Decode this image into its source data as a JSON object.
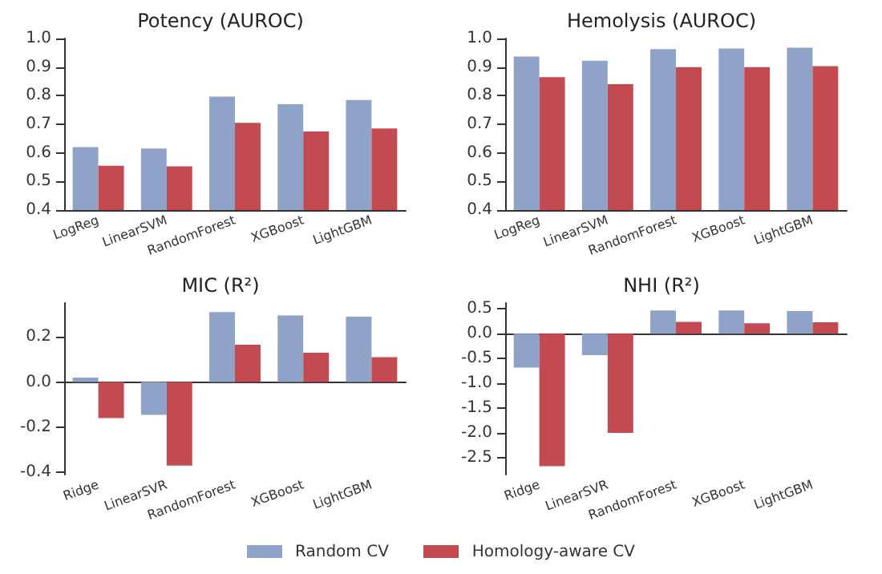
{
  "chart_data": [
    {
      "type": "bar",
      "title": "Potency (AUROC)",
      "categories": [
        "LogReg",
        "LinearSVM",
        "RandomForest",
        "XGBoost",
        "LightGBM"
      ],
      "series": [
        {
          "name": "Random CV",
          "color": "#8fa3c8",
          "values": [
            0.62,
            0.615,
            0.797,
            0.77,
            0.785
          ]
        },
        {
          "name": "Homology-aware CV",
          "color": "#c44a52",
          "values": [
            0.555,
            0.553,
            0.705,
            0.675,
            0.685
          ]
        }
      ],
      "ylim": [
        0.4,
        1.0
      ],
      "yticks": [
        0.4,
        0.5,
        0.6,
        0.7,
        0.8,
        0.9,
        {
          "value": 1,
          "label": "1.0"
        }
      ],
      "legend": "bottom"
    },
    {
      "type": "bar",
      "title": "Hemolysis (AUROC)",
      "categories": [
        "LogReg",
        "LinearSVM",
        "RandomForest",
        "XGBoost",
        "LightGBM"
      ],
      "series": [
        {
          "color": "#8fa3c8",
          "values": [
            0.937,
            0.922,
            0.963,
            0.965,
            0.968
          ]
        },
        {
          "color": "#c44a52",
          "values": [
            0.865,
            0.84,
            0.9,
            0.9,
            0.903
          ]
        }
      ],
      "ylim": [
        0.4,
        1.0
      ],
      "yticks": [
        0.4,
        0.5,
        0.6,
        0.7,
        0.8,
        0.9,
        {
          "value": 1,
          "label": "1.0"
        }
      ]
    },
    {
      "type": "bar",
      "title": "MIC (R²)",
      "categories": [
        "Ridge",
        "LinearSVR",
        "RandomForest",
        "XGBoost",
        "LightGBM"
      ],
      "series": [
        {
          "color": "#8fa3c8",
          "values": [
            0.02,
            -0.145,
            0.31,
            0.295,
            0.29
          ]
        },
        {
          "color": "#c44a52",
          "values": [
            -0.16,
            -0.37,
            0.165,
            0.13,
            0.11
          ]
        }
      ],
      "ylim": [
        -0.41,
        0.35
      ],
      "yticks": [
        -0.4,
        -0.2,
        {
          "value": 0,
          "label": "0.0"
        },
        0.2
      ]
    },
    {
      "type": "bar",
      "title": "NHI (R²)",
      "categories": [
        "Ridge",
        "LinearSVR",
        "RandomForest",
        "XGBoost",
        "LightGBM"
      ],
      "series": [
        {
          "color": "#8fa3c8",
          "values": [
            -0.68,
            -0.43,
            0.47,
            0.47,
            0.46
          ]
        },
        {
          "color": "#c44a52",
          "values": [
            -2.67,
            -2.0,
            0.24,
            0.21,
            0.23
          ]
        }
      ],
      "ylim": [
        -2.84,
        0.62
      ],
      "yticks": [
        -2.5,
        {
          "value": -2,
          "label": "-2.0"
        },
        -1.5,
        {
          "value": -1,
          "label": "-1.0"
        },
        -0.5,
        {
          "value": 0,
          "label": "0.0"
        },
        0.5
      ]
    }
  ]
}
